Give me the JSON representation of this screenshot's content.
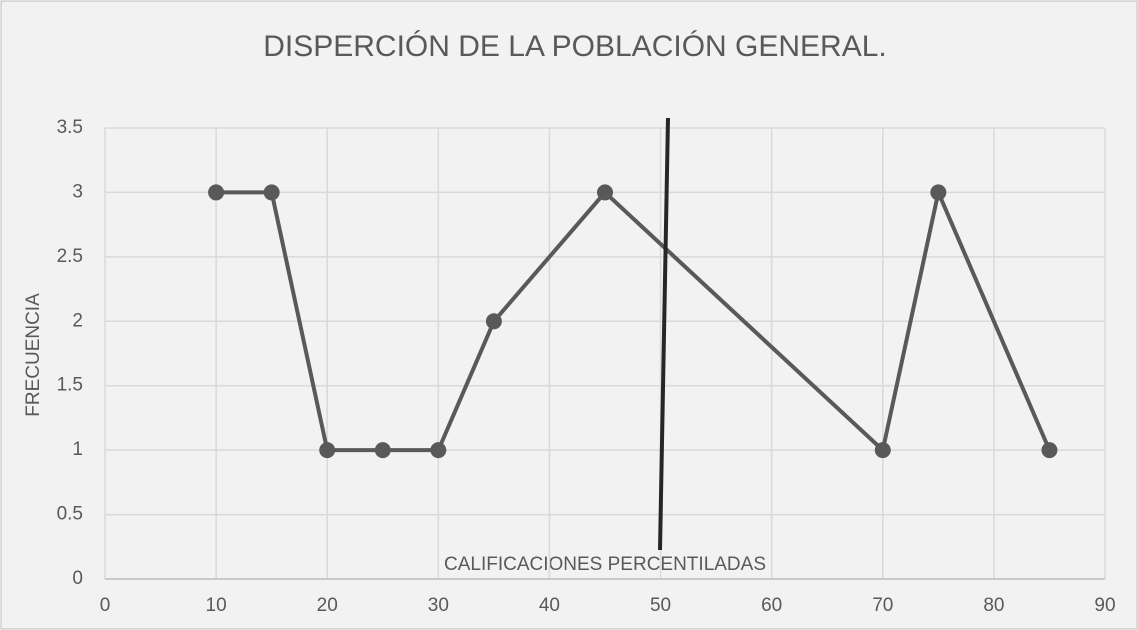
{
  "chart_data": {
    "type": "line",
    "title": "DISPERCIÓN DE LA POBLACIÓN GENERAL.",
    "x_label": "CALIFICACIONES PERCENTILADAS",
    "y_label": "FRECUENCIA",
    "series": [
      {
        "color": "#595959",
        "x": [
          10,
          15,
          20,
          25,
          30,
          35,
          45,
          70,
          75,
          85
        ],
        "values": [
          3,
          3,
          1,
          1,
          1,
          2,
          3,
          1,
          3,
          1
        ]
      }
    ],
    "xlim": [
      0,
      90
    ],
    "xticks": [
      0,
      10,
      20,
      30,
      40,
      50,
      60,
      70,
      80,
      90
    ],
    "ylim": [
      0,
      3.5
    ],
    "yticks": [
      0,
      0.5,
      1,
      1.5,
      2,
      2.5,
      3,
      3.5
    ],
    "grid": true,
    "markers": true
  }
}
